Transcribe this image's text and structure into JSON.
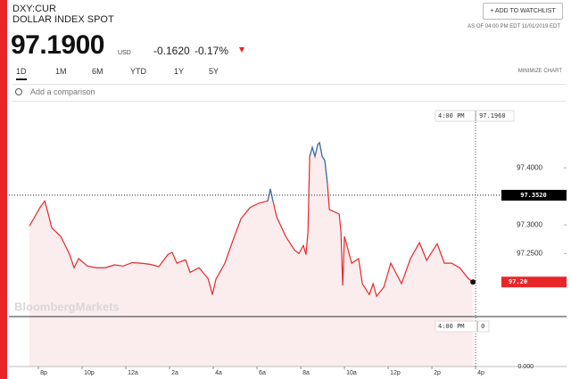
{
  "header": {
    "symbol": "DXY:CUR",
    "name": "DOLLAR INDEX SPOT",
    "price": "97.1900",
    "currency": "USD",
    "change": "-0.1620",
    "change_pct": "-0.17%",
    "watchlist_button": "+ ADD TO WATCHLIST",
    "as_of": "AS OF 04:00 PM EDT 11/01/2019 EDT"
  },
  "tabs": [
    "1D",
    "1M",
    "6M",
    "YTD",
    "1Y",
    "5Y"
  ],
  "minimize": "MINIMIZE CHART",
  "search_placeholder": "Add a comparison",
  "chart_data": {
    "type": "line",
    "watermark": "BloombergMarkets",
    "x": [
      19.59,
      20.08,
      20.29,
      20.41,
      20.61,
      21.02,
      21.43,
      21.63,
      21.84,
      22.24,
      22.65,
      23.06,
      23.47,
      23.88,
      24.29,
      24.69,
      25.1,
      25.51,
      25.92,
      26.12,
      26.33,
      26.73,
      26.94,
      27.35,
      27.76,
      27.96,
      28.12,
      28.53,
      28.86,
      29.27,
      29.67,
      30.08,
      30.49,
      30.61,
      30.73,
      30.9,
      31.31,
      31.71,
      31.92,
      32.12,
      32.24,
      32.33,
      32.41,
      32.53,
      32.65,
      32.78,
      32.86,
      32.98,
      33.1,
      33.22,
      33.31,
      33.59,
      33.76,
      33.84,
      33.92,
      34.0,
      34.33,
      34.65,
      34.82,
      35.14,
      35.31,
      35.47,
      35.8,
      36.12,
      36.45,
      36.61,
      37.02,
      37.43,
      37.76,
      38.24,
      38.57,
      38.9,
      39.27,
      39.67,
      39.88
    ],
    "series": [
      {
        "color": "#e8262a",
        "values": [
          97.298,
          97.331,
          97.342,
          97.325,
          97.295,
          97.28,
          97.248,
          97.225,
          97.241,
          97.228,
          97.225,
          97.225,
          97.23,
          97.228,
          97.234,
          97.233,
          97.231,
          97.227,
          97.248,
          97.252,
          97.233,
          97.239,
          97.217,
          97.225,
          97.206,
          97.178,
          97.205,
          97.233,
          97.269,
          97.311,
          97.33,
          97.338,
          97.342,
          97.363,
          97.342,
          97.314,
          97.28,
          97.256,
          97.25,
          97.264,
          97.248,
          97.288,
          97.42,
          97.436,
          97.42,
          97.441,
          97.444,
          97.42,
          97.413,
          97.373,
          97.327,
          97.322,
          97.319,
          97.288,
          97.194,
          97.28,
          97.233,
          97.241,
          97.197,
          97.178,
          97.197,
          97.175,
          97.191,
          97.233,
          97.209,
          97.197,
          97.241,
          97.269,
          97.238,
          97.267,
          97.233,
          97.233,
          97.225,
          97.206,
          97.2
        ]
      },
      {
        "color": "#2a7ab8",
        "values": [
          null,
          null,
          null,
          null,
          null,
          null,
          null,
          null,
          null,
          null,
          null,
          null,
          null,
          null,
          null,
          null,
          null,
          null,
          null,
          null,
          null,
          null,
          null,
          null,
          null,
          null,
          null,
          null,
          null,
          null,
          null,
          null,
          97.342,
          97.363,
          97.342,
          null,
          null,
          null,
          null,
          null,
          null,
          null,
          97.42,
          97.436,
          97.42,
          97.441,
          97.444,
          97.42,
          97.413,
          97.373,
          null,
          null,
          null,
          null,
          null,
          null,
          null,
          null,
          null,
          null,
          null,
          null,
          null,
          null,
          null,
          null,
          null,
          null,
          null,
          null,
          null,
          null,
          null,
          null,
          null
        ]
      }
    ],
    "xlim": [
      18.65,
      44.16
    ],
    "ylim": [
      97.052,
      97.494
    ],
    "xticks": [
      {
        "value": 20,
        "label": "8p"
      },
      {
        "value": 22,
        "label": "10p"
      },
      {
        "value": 24,
        "label": "12a"
      },
      {
        "value": 26,
        "label": "2a"
      },
      {
        "value": 28,
        "label": "4a"
      },
      {
        "value": 30,
        "label": "6a"
      },
      {
        "value": 32,
        "label": "8a"
      },
      {
        "value": 34,
        "label": "10a"
      },
      {
        "value": 36,
        "label": "12p"
      },
      {
        "value": 38,
        "label": "2p"
      },
      {
        "value": 40,
        "label": "4p"
      }
    ],
    "yticks": [
      {
        "value": 97.25,
        "label": "97.2500"
      },
      {
        "value": 97.3,
        "label": "97.3000"
      },
      {
        "value": 97.4,
        "label": "97.4000"
      }
    ],
    "bottom_label": "0.000",
    "previous_close": {
      "value": 97.352,
      "label": "97.3520"
    },
    "last_value_label": "97.20",
    "crosshair": {
      "x": 40,
      "time_label": "4:00 PM",
      "value_label": "97.1960",
      "bottom_time_label": "4:00 PM",
      "bottom_value_label": "0"
    },
    "fill_color": "#fbeded"
  }
}
